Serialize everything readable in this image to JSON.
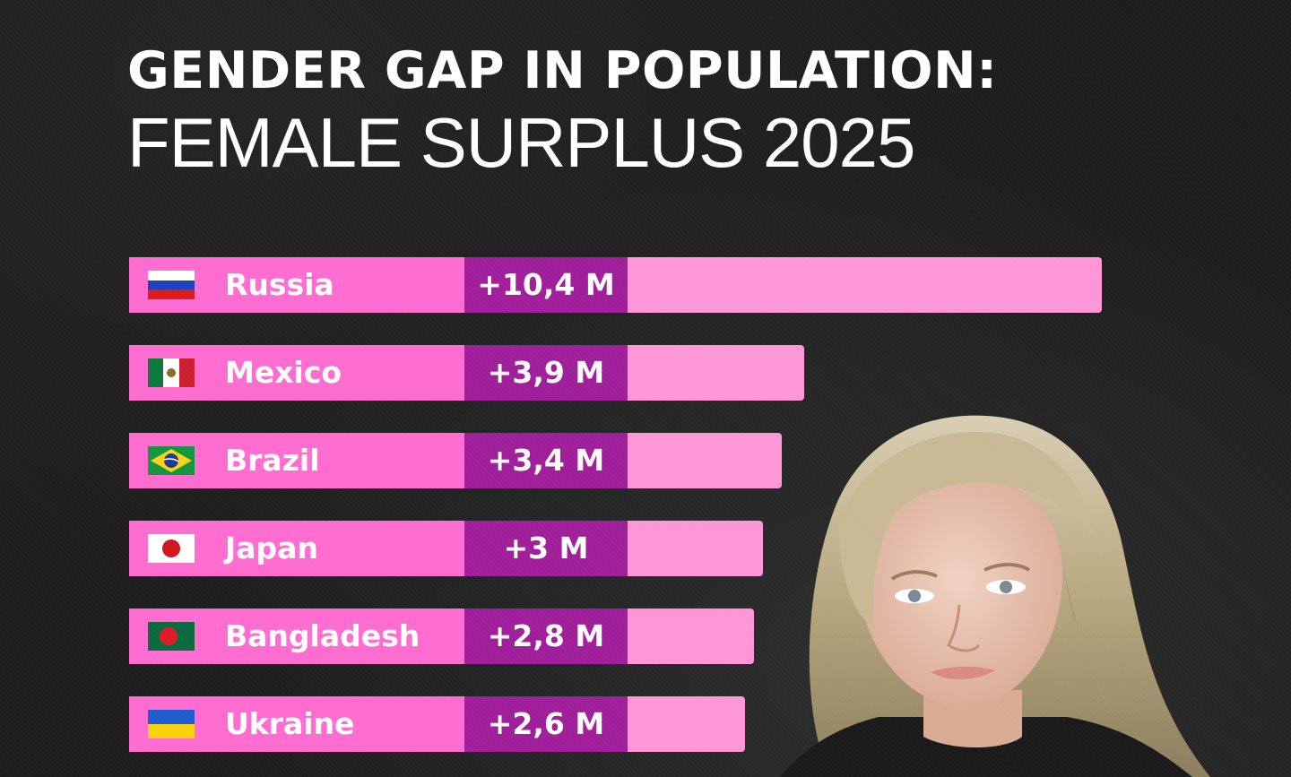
{
  "title_line1": "GENDER GAP IN POPULATION:",
  "title_line2": "FEMALE SURPLUS 2025",
  "colors": {
    "label_segment": "#ff6ccf",
    "value_segment": "#a01e9a",
    "bar_remainder": "#ff96d8",
    "background": "#1c1c1c"
  },
  "chart_data": {
    "type": "bar",
    "orientation": "horizontal",
    "categories": [
      "Russia",
      "Mexico",
      "Brazil",
      "Japan",
      "Bangladesh",
      "Ukraine"
    ],
    "values": [
      10.4,
      3.9,
      3.4,
      3.0,
      2.8,
      2.6
    ],
    "value_labels": [
      "+10,4 M",
      "+3,9 M",
      "+3,4 M",
      "+3 M",
      "+2,8 M",
      "+2,6 M"
    ],
    "flags": [
      "russia-flag-icon",
      "mexico-flag-icon",
      "brazil-flag-icon",
      "japan-flag-icon",
      "bangladesh-flag-icon",
      "ukraine-flag-icon"
    ],
    "title": "",
    "xlabel": "",
    "ylabel": "",
    "grid": false,
    "legend": "none"
  }
}
